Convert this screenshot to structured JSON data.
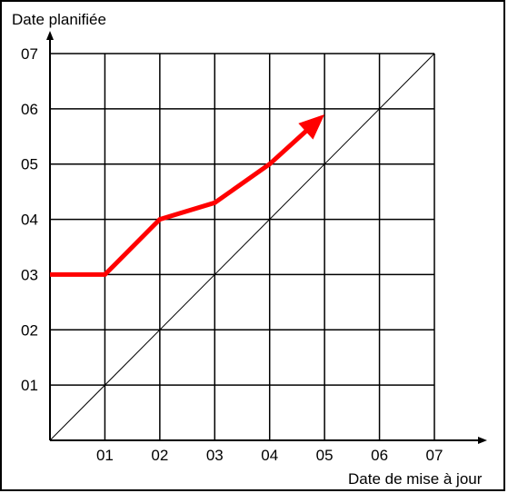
{
  "chart_data": {
    "type": "line",
    "title": "",
    "xlabel": "Date de mise à jour",
    "ylabel": "Date planifiée",
    "x_ticks": [
      "01",
      "02",
      "03",
      "04",
      "05",
      "06",
      "07"
    ],
    "y_ticks": [
      "01",
      "02",
      "03",
      "04",
      "05",
      "06",
      "07"
    ],
    "xlim": [
      0,
      7
    ],
    "ylim": [
      0,
      7
    ],
    "grid": true,
    "reference_line": {
      "from": [
        0,
        0
      ],
      "to": [
        7,
        7
      ],
      "color": "#000000"
    },
    "series": [
      {
        "color": "#ff0000",
        "x": [
          0,
          1,
          2,
          3,
          4,
          5
        ],
        "y": [
          3,
          3,
          4,
          4.3,
          5,
          5.9
        ],
        "arrow_end": true
      }
    ]
  }
}
